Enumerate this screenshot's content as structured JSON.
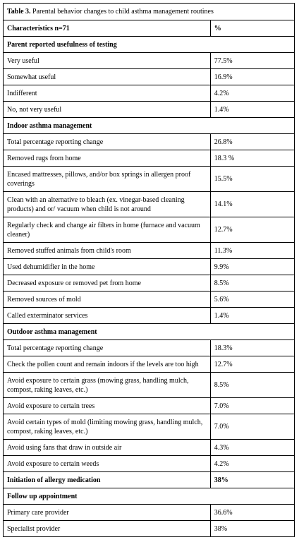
{
  "caption": {
    "number": "Table 3.",
    "text": " Parental behavior changes to child asthma management routines"
  },
  "header": {
    "col1": "Characteristics n=71",
    "col2": "%"
  },
  "sections": [
    {
      "title": "Parent reported usefulness of testing",
      "rows": [
        {
          "label": "Very useful",
          "value": "77.5%"
        },
        {
          "label": "Somewhat useful",
          "value": "16.9%"
        },
        {
          "label": "Indifferent",
          "value": "4.2%"
        },
        {
          "label": "No, not very useful",
          "value": "1.4%"
        }
      ]
    },
    {
      "title": "Indoor asthma management",
      "rows": [
        {
          "label": "Total percentage reporting change",
          "value": "26.8%"
        },
        {
          "label": "Removed rugs from home",
          "value": "18.3 %"
        },
        {
          "label": "Encased mattresses, pillows, and/or box springs in allergen proof coverings",
          "value": "15.5%"
        },
        {
          "label": "Clean with an alternative to bleach (ex. vinegar-based cleaning products) and or/ vacuum when child is not around",
          "value": "14.1%"
        },
        {
          "label": "Regularly check and change air filters in home (furnace and vacuum cleaner)",
          "value": "12.7%"
        },
        {
          "label": "Removed stuffed animals from child's room",
          "value": "11.3%"
        },
        {
          "label": "Used dehumidifier in the home",
          "value": "9.9%"
        },
        {
          "label": "Decreased exposure or removed pet from home",
          "value": "8.5%"
        },
        {
          "label": "Removed sources of mold",
          "value": "5.6%"
        },
        {
          "label": "Called exterminator services",
          "value": "1.4%"
        }
      ]
    },
    {
      "title": "Outdoor asthma management",
      "rows": [
        {
          "label": "Total percentage reporting change",
          "value": "18.3%"
        },
        {
          "label": "Check the pollen count and remain indoors if the levels are too high",
          "value": "12.7%"
        },
        {
          "label": "Avoid exposure to certain grass (mowing grass, handling mulch, compost, raking leaves, etc.)",
          "value": "8.5%"
        },
        {
          "label": "Avoid exposure to certain trees",
          "value": "7.0%"
        },
        {
          "label": "Avoid certain types of mold (limiting mowing grass, handling mulch, compost, raking leaves, etc.)",
          "value": "7.0%"
        },
        {
          "label": "Avoid using fans that draw in outside air",
          "value": "4.3%"
        },
        {
          "label": "Avoid exposure to certain weeds",
          "value": "4.2%"
        }
      ]
    }
  ],
  "allergy": {
    "label": "Initiation of allergy medication",
    "value": "38%"
  },
  "followup": {
    "title": "Follow up appointment",
    "rows": [
      {
        "label": "Primary care provider",
        "value": "36.6%"
      },
      {
        "label": "Specialist provider",
        "value": "38%"
      }
    ]
  }
}
